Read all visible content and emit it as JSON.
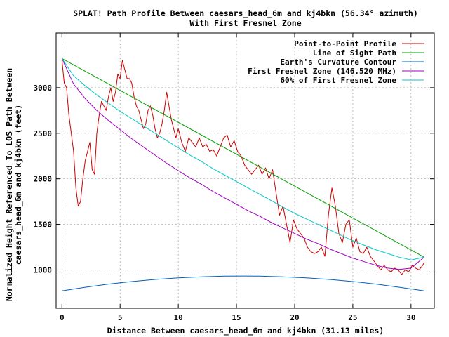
{
  "chart_data": {
    "type": "line",
    "title": "SPLAT! Path Profile Between caesars_head_6m and kj4bkn (56.34° azimuth)",
    "subtitle": "With First Fresnel Zone",
    "xlabel": "Distance Between caesars_head_6m and kj4bkn (31.13 miles)",
    "ylabel_line1": "Normalized Height Referenced To LOS Path Between",
    "ylabel_line2": "caesars_head_6m and kj4bkn (feet)",
    "xlim": [
      -0.5,
      32
    ],
    "ylim": [
      580,
      3600
    ],
    "x_ticks": [
      0,
      5,
      10,
      15,
      20,
      25,
      30
    ],
    "y_ticks": [
      1000,
      1500,
      2000,
      2500,
      3000
    ],
    "grid": true,
    "legend_position": "top-right",
    "series": [
      {
        "name": "Point-to-Point Profile",
        "color": "#cc0000",
        "x": [
          0,
          0.2,
          0.4,
          0.6,
          0.8,
          1.0,
          1.2,
          1.4,
          1.6,
          1.8,
          2.0,
          2.2,
          2.4,
          2.6,
          2.8,
          3.0,
          3.2,
          3.4,
          3.6,
          3.8,
          4.0,
          4.2,
          4.4,
          4.6,
          4.8,
          5.0,
          5.2,
          5.4,
          5.6,
          5.8,
          6.0,
          6.2,
          6.4,
          6.6,
          6.8,
          7.0,
          7.2,
          7.4,
          7.6,
          7.8,
          8.0,
          8.2,
          8.4,
          8.6,
          8.8,
          9.0,
          9.2,
          9.4,
          9.6,
          9.8,
          10.0,
          10.3,
          10.6,
          10.9,
          11.2,
          11.5,
          11.8,
          12.1,
          12.4,
          12.7,
          13.0,
          13.3,
          13.6,
          13.9,
          14.2,
          14.5,
          14.8,
          15.1,
          15.4,
          15.7,
          16.0,
          16.3,
          16.6,
          16.9,
          17.2,
          17.5,
          17.8,
          18.1,
          18.4,
          18.7,
          19.0,
          19.3,
          19.6,
          19.9,
          20.2,
          20.5,
          20.8,
          21.1,
          21.4,
          21.7,
          22.0,
          22.3,
          22.6,
          22.9,
          23.2,
          23.5,
          23.8,
          24.1,
          24.4,
          24.7,
          25.0,
          25.3,
          25.6,
          25.9,
          26.2,
          26.5,
          26.8,
          27.1,
          27.4,
          27.7,
          28.0,
          28.3,
          28.6,
          28.9,
          29.2,
          29.5,
          29.8,
          30.1,
          30.4,
          30.7,
          31.0,
          31.13
        ],
        "y": [
          3300,
          3050,
          3000,
          2700,
          2500,
          2300,
          1900,
          1700,
          1750,
          2000,
          2200,
          2300,
          2400,
          2100,
          2050,
          2500,
          2700,
          2850,
          2800,
          2750,
          2900,
          3000,
          2850,
          2950,
          3150,
          3100,
          3300,
          3200,
          3100,
          3100,
          3050,
          2900,
          2800,
          2750,
          2650,
          2550,
          2600,
          2750,
          2800,
          2700,
          2550,
          2450,
          2500,
          2600,
          2750,
          2950,
          2800,
          2650,
          2550,
          2450,
          2550,
          2400,
          2300,
          2450,
          2400,
          2350,
          2450,
          2350,
          2380,
          2300,
          2320,
          2250,
          2350,
          2450,
          2480,
          2350,
          2420,
          2300,
          2250,
          2150,
          2100,
          2050,
          2100,
          2150,
          2050,
          2120,
          2000,
          2100,
          1850,
          1600,
          1700,
          1500,
          1300,
          1550,
          1450,
          1400,
          1350,
          1250,
          1200,
          1180,
          1200,
          1250,
          1150,
          1600,
          1900,
          1700,
          1400,
          1300,
          1500,
          1550,
          1250,
          1350,
          1200,
          1180,
          1250,
          1150,
          1100,
          1050,
          1000,
          1050,
          1000,
          980,
          1020,
          1000,
          950,
          1000,
          980,
          1050,
          1020,
          1000,
          1050,
          1080
        ]
      },
      {
        "name": "Line of Sight Path",
        "color": "#00a000",
        "x": [
          0,
          31.13
        ],
        "y": [
          3320,
          1140
        ]
      },
      {
        "name": "Earth's Curvature Contour",
        "color": "#0060c0",
        "x": [
          0,
          2,
          4,
          6,
          8,
          10,
          12,
          14,
          15.5,
          17,
          19,
          21,
          23,
          25,
          27,
          29,
          31.13
        ],
        "y": [
          770,
          810,
          845,
          873,
          896,
          913,
          925,
          932,
          934,
          932,
          925,
          913,
          896,
          873,
          845,
          810,
          770
        ]
      },
      {
        "name": "First Fresnel Zone (146.520 MHz)",
        "color": "#a000c0",
        "x": [
          0,
          1,
          2,
          3,
          4,
          5,
          6,
          7,
          8,
          9,
          10,
          11,
          12,
          13,
          14,
          15,
          16,
          17,
          18,
          19,
          20,
          21,
          22,
          23,
          24,
          25,
          26,
          27,
          28,
          29,
          30,
          31.13
        ],
        "y": [
          3320,
          3040,
          2880,
          2750,
          2640,
          2540,
          2440,
          2350,
          2260,
          2170,
          2090,
          2010,
          1940,
          1860,
          1790,
          1720,
          1650,
          1590,
          1520,
          1460,
          1400,
          1340,
          1290,
          1230,
          1180,
          1130,
          1090,
          1050,
          1020,
          1005,
          1020,
          1140
        ]
      },
      {
        "name": "60% of First Fresnel Zone",
        "color": "#00c8c8",
        "x": [
          0,
          1,
          2,
          3,
          4,
          5,
          6,
          7,
          8,
          9,
          10,
          11,
          12,
          13,
          14,
          15,
          16,
          17,
          18,
          19,
          20,
          21,
          22,
          23,
          24,
          25,
          26,
          27,
          28,
          29,
          30,
          31.13
        ],
        "y": [
          3320,
          3130,
          3020,
          2920,
          2830,
          2740,
          2660,
          2580,
          2500,
          2420,
          2340,
          2260,
          2190,
          2110,
          2040,
          1970,
          1900,
          1830,
          1760,
          1690,
          1620,
          1560,
          1500,
          1440,
          1380,
          1320,
          1270,
          1220,
          1180,
          1140,
          1110,
          1140
        ]
      }
    ]
  }
}
